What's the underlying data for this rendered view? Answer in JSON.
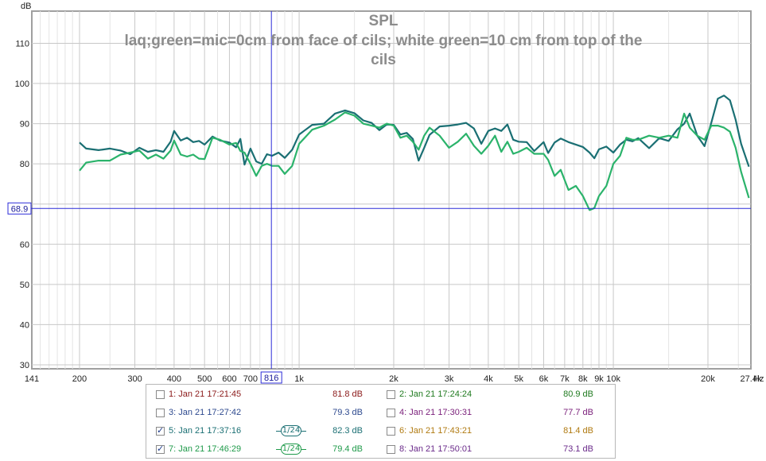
{
  "chart_data": {
    "type": "line",
    "title": "SPL",
    "subtitle_lines": [
      "laq;green=mic=0cm from face of cils; white green=10 cm from top of the",
      "cils"
    ],
    "ylabel": "dB",
    "xlabel": "Hz",
    "x_scale": "log",
    "xlim": [
      141,
      27400
    ],
    "ylim": [
      29,
      118
    ],
    "grid": true,
    "y_ticks": [
      30,
      40,
      50,
      60,
      70,
      80,
      90,
      100,
      110
    ],
    "y_tick_labels": [
      "30",
      "40",
      "50",
      "60",
      "",
      "80",
      "90",
      "100",
      "110"
    ],
    "x_ticks": [
      {
        "v": 141,
        "label": "141"
      },
      {
        "v": 200,
        "label": "200"
      },
      {
        "v": 300,
        "label": "300"
      },
      {
        "v": 400,
        "label": "400"
      },
      {
        "v": 500,
        "label": "500"
      },
      {
        "v": 600,
        "label": "600"
      },
      {
        "v": 700,
        "label": "700"
      },
      {
        "v": 1000,
        "label": "1k"
      },
      {
        "v": 2000,
        "label": "2k"
      },
      {
        "v": 3000,
        "label": "3k"
      },
      {
        "v": 4000,
        "label": "4k"
      },
      {
        "v": 5000,
        "label": "5k"
      },
      {
        "v": 6000,
        "label": "6k"
      },
      {
        "v": 7000,
        "label": "7k"
      },
      {
        "v": 8000,
        "label": "8k"
      },
      {
        "v": 9000,
        "label": "9k"
      },
      {
        "v": 10000,
        "label": "10k"
      },
      {
        "v": 20000,
        "label": "20k"
      },
      {
        "v": 27400,
        "label": "27.4k"
      }
    ],
    "x_minor_grid": [
      150,
      160,
      170,
      180,
      190,
      250,
      350,
      450,
      550,
      650,
      750,
      850,
      900,
      950,
      1500,
      2500,
      3500,
      4500,
      5500,
      6500,
      7500,
      8500,
      9500,
      15000,
      25000
    ],
    "cursor": {
      "x": 816,
      "x_label": "816",
      "y": 68.9,
      "y_label": "68.9"
    },
    "series": [
      {
        "name": "5: Jan 21 17:37:16",
        "color": "#1a6f73",
        "points": [
          [
            200,
            85.3
          ],
          [
            210,
            83.8
          ],
          [
            230,
            83.4
          ],
          [
            250,
            83.8
          ],
          [
            270,
            83.3
          ],
          [
            290,
            82.4
          ],
          [
            310,
            84.0
          ],
          [
            330,
            83.0
          ],
          [
            350,
            83.4
          ],
          [
            370,
            83.0
          ],
          [
            390,
            85.5
          ],
          [
            400,
            88.2
          ],
          [
            420,
            85.8
          ],
          [
            440,
            86.5
          ],
          [
            460,
            85.4
          ],
          [
            480,
            85.7
          ],
          [
            500,
            84.8
          ],
          [
            530,
            86.8
          ],
          [
            560,
            85.8
          ],
          [
            600,
            85.3
          ],
          [
            630,
            84.1
          ],
          [
            650,
            86.2
          ],
          [
            670,
            79.8
          ],
          [
            700,
            83.8
          ],
          [
            730,
            80.6
          ],
          [
            760,
            80.0
          ],
          [
            790,
            82.4
          ],
          [
            820,
            82.0
          ],
          [
            860,
            82.8
          ],
          [
            900,
            81.5
          ],
          [
            950,
            83.5
          ],
          [
            1000,
            87.3
          ],
          [
            1100,
            89.7
          ],
          [
            1200,
            90.0
          ],
          [
            1300,
            92.5
          ],
          [
            1400,
            93.3
          ],
          [
            1500,
            92.6
          ],
          [
            1600,
            90.8
          ],
          [
            1700,
            90.2
          ],
          [
            1800,
            88.4
          ],
          [
            1900,
            89.8
          ],
          [
            2000,
            89.7
          ],
          [
            2100,
            87.3
          ],
          [
            2200,
            87.7
          ],
          [
            2300,
            86.2
          ],
          [
            2400,
            80.8
          ],
          [
            2500,
            84.0
          ],
          [
            2600,
            87.2
          ],
          [
            2800,
            89.3
          ],
          [
            3000,
            89.5
          ],
          [
            3200,
            89.8
          ],
          [
            3400,
            90.2
          ],
          [
            3600,
            88.8
          ],
          [
            3800,
            85.0
          ],
          [
            4000,
            88.2
          ],
          [
            4200,
            88.8
          ],
          [
            4400,
            88.2
          ],
          [
            4600,
            89.8
          ],
          [
            4800,
            86.0
          ],
          [
            5000,
            85.5
          ],
          [
            5300,
            85.4
          ],
          [
            5600,
            83.2
          ],
          [
            6000,
            85.4
          ],
          [
            6200,
            82.7
          ],
          [
            6500,
            85.3
          ],
          [
            6800,
            86.3
          ],
          [
            7200,
            85.4
          ],
          [
            7600,
            84.8
          ],
          [
            8000,
            84.2
          ],
          [
            8400,
            82.8
          ],
          [
            8700,
            81.4
          ],
          [
            9000,
            83.6
          ],
          [
            9500,
            84.3
          ],
          [
            10000,
            82.8
          ],
          [
            10500,
            84.8
          ],
          [
            11000,
            86.0
          ],
          [
            11500,
            85.6
          ],
          [
            12000,
            86.4
          ],
          [
            13000,
            83.9
          ],
          [
            14000,
            86.4
          ],
          [
            15000,
            85.7
          ],
          [
            16000,
            88.6
          ],
          [
            16800,
            90.0
          ],
          [
            17500,
            92.5
          ],
          [
            18500,
            87.0
          ],
          [
            19500,
            84.4
          ],
          [
            20500,
            90.2
          ],
          [
            21500,
            96.2
          ],
          [
            22500,
            97.0
          ],
          [
            23500,
            95.8
          ],
          [
            24500,
            91.0
          ],
          [
            25500,
            85.0
          ],
          [
            27000,
            79.3
          ]
        ]
      },
      {
        "name": "7: Jan 21 17:46:29",
        "color": "#2bb36b",
        "points": [
          [
            200,
            78.3
          ],
          [
            210,
            80.3
          ],
          [
            230,
            80.8
          ],
          [
            250,
            80.8
          ],
          [
            270,
            82.3
          ],
          [
            290,
            82.8
          ],
          [
            310,
            83.3
          ],
          [
            330,
            81.3
          ],
          [
            350,
            82.3
          ],
          [
            370,
            81.3
          ],
          [
            390,
            83.3
          ],
          [
            400,
            85.8
          ],
          [
            420,
            82.3
          ],
          [
            440,
            81.8
          ],
          [
            460,
            82.3
          ],
          [
            480,
            81.3
          ],
          [
            500,
            81.2
          ],
          [
            530,
            86.5
          ],
          [
            560,
            86.0
          ],
          [
            600,
            84.8
          ],
          [
            630,
            85.2
          ],
          [
            650,
            83.2
          ],
          [
            670,
            82.8
          ],
          [
            700,
            80.0
          ],
          [
            730,
            77.0
          ],
          [
            760,
            79.5
          ],
          [
            790,
            80.0
          ],
          [
            820,
            79.5
          ],
          [
            860,
            79.5
          ],
          [
            900,
            77.5
          ],
          [
            950,
            79.5
          ],
          [
            1000,
            85.0
          ],
          [
            1100,
            88.5
          ],
          [
            1200,
            89.5
          ],
          [
            1300,
            91.0
          ],
          [
            1400,
            92.8
          ],
          [
            1500,
            92.0
          ],
          [
            1600,
            90.0
          ],
          [
            1700,
            89.5
          ],
          [
            1800,
            89.0
          ],
          [
            1900,
            90.0
          ],
          [
            2000,
            89.5
          ],
          [
            2100,
            86.5
          ],
          [
            2200,
            87.0
          ],
          [
            2300,
            85.5
          ],
          [
            2400,
            83.5
          ],
          [
            2500,
            87.0
          ],
          [
            2600,
            89.0
          ],
          [
            2800,
            87.0
          ],
          [
            3000,
            84.0
          ],
          [
            3200,
            85.5
          ],
          [
            3400,
            87.5
          ],
          [
            3600,
            84.5
          ],
          [
            3800,
            82.5
          ],
          [
            4000,
            84.5
          ],
          [
            4200,
            87.0
          ],
          [
            4400,
            83.0
          ],
          [
            4600,
            85.5
          ],
          [
            4800,
            82.5
          ],
          [
            5000,
            83.0
          ],
          [
            5300,
            84.0
          ],
          [
            5600,
            82.5
          ],
          [
            6000,
            82.5
          ],
          [
            6200,
            81.0
          ],
          [
            6500,
            77.0
          ],
          [
            6800,
            78.5
          ],
          [
            7200,
            73.5
          ],
          [
            7600,
            74.5
          ],
          [
            8000,
            72.0
          ],
          [
            8400,
            68.5
          ],
          [
            8700,
            69.0
          ],
          [
            9000,
            72.0
          ],
          [
            9500,
            74.5
          ],
          [
            10000,
            80.0
          ],
          [
            10500,
            82.0
          ],
          [
            11000,
            86.5
          ],
          [
            11500,
            86.0
          ],
          [
            12000,
            86.0
          ],
          [
            13000,
            87.0
          ],
          [
            14000,
            86.5
          ],
          [
            15000,
            87.0
          ],
          [
            16000,
            86.5
          ],
          [
            16800,
            92.5
          ],
          [
            17500,
            89.0
          ],
          [
            18500,
            87.0
          ],
          [
            19500,
            86.0
          ],
          [
            20500,
            89.5
          ],
          [
            21500,
            89.5
          ],
          [
            22500,
            89.0
          ],
          [
            23500,
            88.0
          ],
          [
            24500,
            84.0
          ],
          [
            25500,
            78.0
          ],
          [
            27000,
            71.5
          ]
        ]
      }
    ],
    "legend": {
      "position": "bottom",
      "entries": [
        {
          "label": "1: Jan 21 17:21:45",
          "value": "81.8 dB",
          "checked": false,
          "color": "#8b1a1a",
          "smoothing": ""
        },
        {
          "label": "2: Jan 21 17:24:24",
          "value": "80.9 dB",
          "checked": false,
          "color": "#1f7a1f",
          "smoothing": ""
        },
        {
          "label": "3: Jan 21 17:27:42",
          "value": "79.3 dB",
          "checked": false,
          "color": "#2e4a8f",
          "smoothing": ""
        },
        {
          "label": "4: Jan 21 17:30:31",
          "value": "77.7 dB",
          "checked": false,
          "color": "#7a1f7a",
          "smoothing": ""
        },
        {
          "label": "5: Jan 21 17:37:16",
          "value": "82.3 dB",
          "checked": true,
          "color": "#1a6f73",
          "smoothing": "1/24"
        },
        {
          "label": "6: Jan 21 17:43:21",
          "value": "81.4 dB",
          "checked": false,
          "color": "#b07a10",
          "smoothing": ""
        },
        {
          "label": "7: Jan 21 17:46:29",
          "value": "79.4 dB",
          "checked": true,
          "color": "#1f9a4a",
          "smoothing": "1/24"
        },
        {
          "label": "8: Jan 21 17:50:01",
          "value": "73.1 dB",
          "checked": false,
          "color": "#6a2a8a",
          "smoothing": ""
        }
      ]
    }
  }
}
